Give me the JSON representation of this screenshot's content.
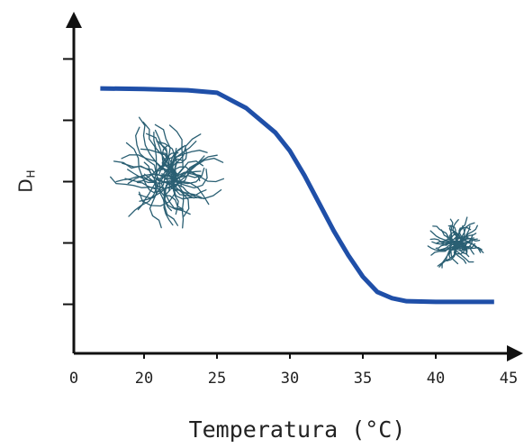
{
  "chart_data": {
    "type": "line",
    "x_label": "Temperatura (°C)",
    "y_label": {
      "main": "D",
      "subscript": "H"
    },
    "origin_label": "0",
    "x": [
      17,
      20,
      23,
      25,
      27,
      29,
      30,
      31,
      32,
      33,
      34,
      35,
      36,
      37,
      38,
      40,
      42,
      44
    ],
    "series": [
      {
        "color": "#1f4fa8",
        "values": [
          4.32,
          4.31,
          4.29,
          4.25,
          4.0,
          3.6,
          3.3,
          2.9,
          2.45,
          2.0,
          1.6,
          1.25,
          1.0,
          0.9,
          0.85,
          0.84,
          0.84,
          0.84
        ]
      }
    ],
    "xlim": [
      15,
      46
    ],
    "xticks": [
      20,
      25,
      30,
      35,
      40,
      45
    ],
    "ylim": [
      0,
      5.6
    ],
    "yticks": [
      0.8,
      1.8,
      2.8,
      3.8,
      4.8
    ]
  }
}
